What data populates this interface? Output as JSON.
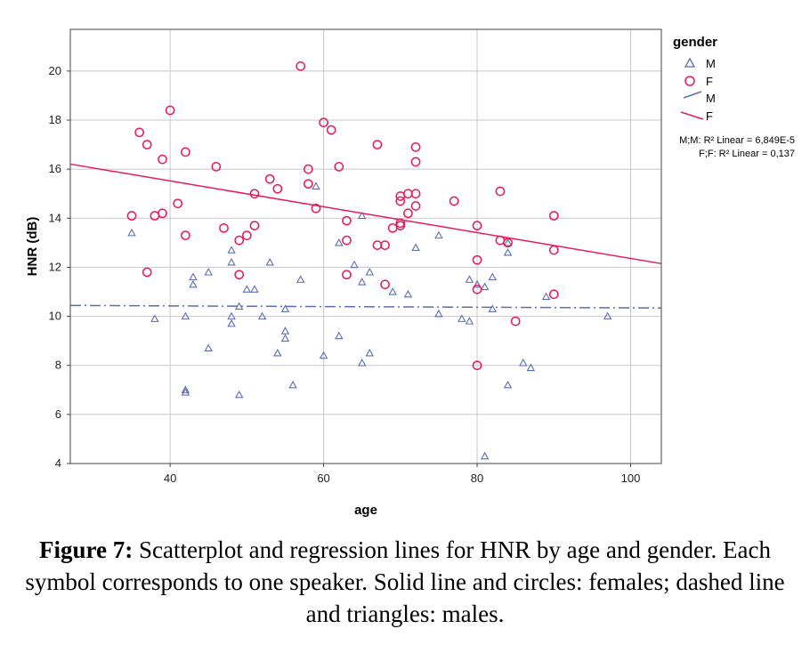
{
  "chart_data": {
    "type": "scatter",
    "xlabel": "age",
    "ylabel": "HNR (dB)",
    "xlim": [
      27,
      104
    ],
    "ylim": [
      4,
      21.7
    ],
    "x_ticks": [
      40,
      60,
      80,
      100
    ],
    "y_ticks": [
      4,
      6,
      8,
      10,
      12,
      14,
      16,
      18,
      20
    ],
    "grid": true,
    "legend_placement": "right",
    "legend": {
      "title": "gender",
      "entries": [
        {
          "label": "M",
          "kind": "triangle"
        },
        {
          "label": "F",
          "kind": "circle"
        },
        {
          "label": "M",
          "kind": "dashline"
        },
        {
          "label": "F",
          "kind": "solidline"
        }
      ],
      "r2_lines": [
        "M;M: R² Linear = 6,849E-5",
        "F;F: R² Linear = 0,137"
      ]
    },
    "colors": {
      "M": "#5a6db5",
      "F": "#e8195a"
    },
    "series": [
      {
        "name": "M",
        "marker": "triangle",
        "points": [
          [
            35,
            13.4
          ],
          [
            38,
            9.9
          ],
          [
            42,
            10
          ],
          [
            42,
            7
          ],
          [
            42,
            6.9
          ],
          [
            43,
            11.6
          ],
          [
            43,
            11.3
          ],
          [
            45,
            11.8
          ],
          [
            45,
            8.7
          ],
          [
            48,
            12.7
          ],
          [
            48,
            12.2
          ],
          [
            48,
            10
          ],
          [
            48,
            9.7
          ],
          [
            49,
            10.4
          ],
          [
            49,
            6.8
          ],
          [
            50,
            11.1
          ],
          [
            51,
            11.1
          ],
          [
            52,
            10
          ],
          [
            53,
            12.2
          ],
          [
            54,
            8.5
          ],
          [
            55,
            9.4
          ],
          [
            55,
            9.1
          ],
          [
            55,
            10.3
          ],
          [
            56,
            7.2
          ],
          [
            57,
            11.5
          ],
          [
            59,
            15.3
          ],
          [
            60,
            8.4
          ],
          [
            62,
            13
          ],
          [
            62,
            9.2
          ],
          [
            64,
            12.1
          ],
          [
            65,
            14.1
          ],
          [
            65,
            11.4
          ],
          [
            65,
            8.1
          ],
          [
            66,
            11.8
          ],
          [
            66,
            8.5
          ],
          [
            69,
            11
          ],
          [
            71,
            10.9
          ],
          [
            72,
            12.8
          ],
          [
            75,
            13.3
          ],
          [
            75,
            10.1
          ],
          [
            78,
            9.9
          ],
          [
            79,
            11.5
          ],
          [
            79,
            9.8
          ],
          [
            80,
            11.3
          ],
          [
            81,
            11.2
          ],
          [
            82,
            11.6
          ],
          [
            82,
            10.3
          ],
          [
            81,
            4.3
          ],
          [
            84,
            13
          ],
          [
            84,
            12.6
          ],
          [
            84,
            7.2
          ],
          [
            86,
            8.1
          ],
          [
            87,
            7.9
          ],
          [
            89,
            10.8
          ],
          [
            97,
            10
          ]
        ],
        "fit": {
          "intercept": 10.48,
          "slope": -0.00135
        }
      },
      {
        "name": "F",
        "marker": "circle",
        "points": [
          [
            35,
            14.1
          ],
          [
            36,
            17.5
          ],
          [
            37,
            17
          ],
          [
            37,
            11.8
          ],
          [
            38,
            14.1
          ],
          [
            39,
            14.2
          ],
          [
            39,
            16.4
          ],
          [
            40,
            18.4
          ],
          [
            41,
            14.6
          ],
          [
            42,
            16.7
          ],
          [
            42,
            13.3
          ],
          [
            46,
            16.1
          ],
          [
            47,
            13.6
          ],
          [
            49,
            13.1
          ],
          [
            49,
            11.7
          ],
          [
            50,
            13.3
          ],
          [
            51,
            13.7
          ],
          [
            51,
            15
          ],
          [
            53,
            15.6
          ],
          [
            54,
            15.2
          ],
          [
            57,
            20.2
          ],
          [
            58,
            16
          ],
          [
            58,
            15.4
          ],
          [
            59,
            14.4
          ],
          [
            60,
            17.9
          ],
          [
            61,
            17.6
          ],
          [
            62,
            16.1
          ],
          [
            63,
            13.9
          ],
          [
            63,
            13.1
          ],
          [
            63,
            11.7
          ],
          [
            67,
            17
          ],
          [
            67,
            12.9
          ],
          [
            68,
            12.9
          ],
          [
            68,
            11.3
          ],
          [
            69,
            13.6
          ],
          [
            70,
            14.7
          ],
          [
            70,
            14.9
          ],
          [
            70,
            13.8
          ],
          [
            70,
            13.7
          ],
          [
            71,
            15
          ],
          [
            71,
            14.2
          ],
          [
            72,
            16.9
          ],
          [
            72,
            16.3
          ],
          [
            72,
            15
          ],
          [
            72,
            14.5
          ],
          [
            77,
            14.7
          ],
          [
            80,
            13.7
          ],
          [
            80,
            12.3
          ],
          [
            80,
            11.1
          ],
          [
            80,
            8
          ],
          [
            83,
            15.1
          ],
          [
            83,
            13.1
          ],
          [
            84,
            13
          ],
          [
            85,
            9.8
          ],
          [
            90,
            14.1
          ],
          [
            90,
            12.7
          ],
          [
            90,
            10.9
          ]
        ],
        "fit": {
          "intercept": 17.63,
          "slope": -0.0527
        }
      }
    ]
  },
  "caption": {
    "label": "Figure 7:",
    "text": " Scatterplot and regression lines for HNR by age and gender. Each symbol corresponds to one speaker. Solid line and circles: females; dashed line and triangles: males."
  }
}
